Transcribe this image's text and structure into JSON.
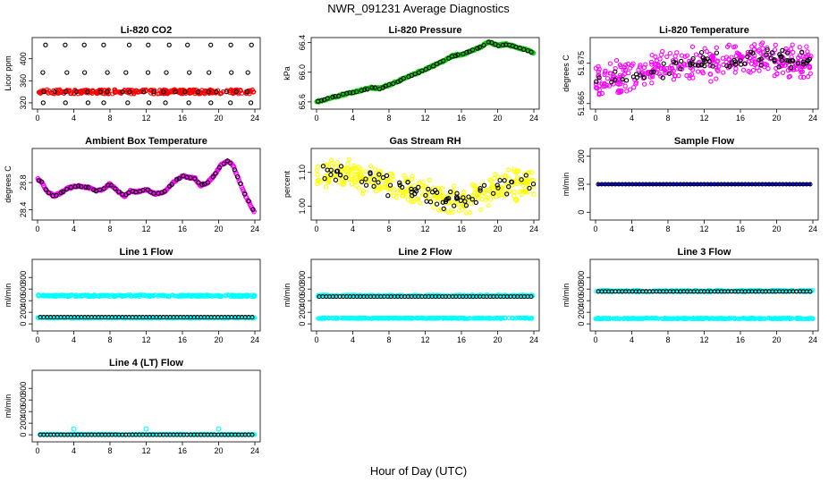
{
  "title": "NWR_091231  Average Diagnostics",
  "xlabel": "Hour of Day (UTC)",
  "x_ticks": [
    "0",
    "4",
    "8",
    "12",
    "16",
    "20",
    "24"
  ],
  "colors": {
    "black": "#000000",
    "red": "#ff0000",
    "green": "#00cc00",
    "magenta": "#ff00ff",
    "yellow": "#ffff00",
    "blue": "#0000ff",
    "cyan": "#00ffff"
  },
  "chart_data": [
    {
      "type": "scatter",
      "title": "Li-820 CO2",
      "ylabel": "Licor ppm",
      "xlim": [
        0,
        24
      ],
      "ylim": [
        315,
        432
      ],
      "y_ticks": [
        "320",
        "360",
        "400"
      ],
      "y_tick_values": [
        320,
        360,
        400
      ],
      "series": [
        {
          "color": "red",
          "style": "band",
          "values_range": [
            336,
            344
          ]
        },
        {
          "color": "black",
          "style": "levels",
          "levels": [
            320,
            340,
            375,
            425
          ]
        }
      ]
    },
    {
      "type": "scatter",
      "title": "Li-820 Pressure",
      "ylabel": "kPa",
      "xlim": [
        0,
        24
      ],
      "ylim": [
        65.55,
        66.42
      ],
      "y_ticks": [
        "65.6",
        "66.0",
        "66.4"
      ],
      "y_tick_values": [
        65.6,
        66.0,
        66.4
      ],
      "series": [
        {
          "color": "green",
          "style": "trend",
          "x": [
            0,
            2,
            4,
            6,
            7,
            8,
            10,
            12,
            14,
            15,
            16,
            18,
            19,
            20,
            21,
            22,
            23,
            24
          ],
          "y": [
            65.6,
            65.67,
            65.73,
            65.79,
            65.78,
            65.83,
            65.93,
            66.04,
            66.15,
            66.22,
            66.24,
            66.33,
            66.41,
            66.36,
            66.38,
            66.34,
            66.31,
            66.26
          ]
        },
        {
          "color": "black",
          "style": "trend-sparse",
          "x": [
            0,
            2,
            4,
            6,
            7,
            8,
            10,
            12,
            14,
            15,
            16,
            18,
            19,
            20,
            21,
            22,
            23,
            24
          ],
          "y": [
            65.6,
            65.67,
            65.73,
            65.79,
            65.78,
            65.83,
            65.93,
            66.04,
            66.15,
            66.22,
            66.24,
            66.33,
            66.41,
            66.36,
            66.38,
            66.34,
            66.31,
            66.26
          ]
        }
      ]
    },
    {
      "type": "scatter",
      "title": "Li-820 Temperature",
      "ylabel": "degrees C",
      "xlim": [
        0,
        24
      ],
      "ylim": [
        51.6645,
        51.6805
      ],
      "y_ticks": [
        "51.665",
        "51.675"
      ],
      "y_tick_values": [
        51.665,
        51.675
      ],
      "series": [
        {
          "color": "magenta",
          "style": "noise",
          "x": [
            0,
            4,
            8,
            12,
            16,
            20,
            24
          ],
          "y": [
            51.67,
            51.672,
            51.674,
            51.675,
            51.676,
            51.676,
            51.675
          ],
          "spread": 0.005
        },
        {
          "color": "black",
          "style": "noise-sparse",
          "x": [
            0,
            4,
            8,
            12,
            16,
            20,
            24
          ],
          "y": [
            51.67,
            51.672,
            51.674,
            51.675,
            51.676,
            51.676,
            51.675
          ],
          "spread": 0.003
        }
      ]
    },
    {
      "type": "scatter",
      "title": "Ambient Box Temperature",
      "ylabel": "degrees C",
      "xlim": [
        0,
        24
      ],
      "ylim": [
        28.3,
        29.25
      ],
      "y_ticks": [
        "28.4",
        "28.8"
      ],
      "y_tick_values": [
        28.4,
        28.8
      ],
      "series": [
        {
          "color": "magenta",
          "style": "trend",
          "x": [
            0,
            0.5,
            1,
            1.8,
            2.6,
            3.4,
            4.5,
            5.5,
            6.5,
            7.2,
            8,
            8.8,
            9.6,
            10.3,
            11,
            12,
            13,
            14,
            15,
            16,
            16.6,
            17.4,
            18,
            18.8,
            19.6,
            20.2,
            21,
            21.6,
            22.2,
            23,
            23.6,
            24
          ],
          "y": [
            28.85,
            28.8,
            28.68,
            28.6,
            28.65,
            28.72,
            28.75,
            28.73,
            28.68,
            28.7,
            28.78,
            28.68,
            28.6,
            28.68,
            28.66,
            28.7,
            28.63,
            28.66,
            28.8,
            28.9,
            28.88,
            28.86,
            28.76,
            28.8,
            28.92,
            29.05,
            29.12,
            29.05,
            28.85,
            28.6,
            28.45,
            28.35
          ]
        },
        {
          "color": "black",
          "style": "trend-sparse",
          "x": [
            0,
            0.5,
            1,
            1.8,
            2.6,
            3.4,
            4.5,
            5.5,
            6.5,
            7.2,
            8,
            8.8,
            9.6,
            10.3,
            11,
            12,
            13,
            14,
            15,
            16,
            16.6,
            17.4,
            18,
            18.8,
            19.6,
            20.2,
            21,
            21.6,
            22.2,
            23,
            23.6,
            24
          ],
          "y": [
            28.85,
            28.8,
            28.68,
            28.6,
            28.65,
            28.72,
            28.75,
            28.73,
            28.68,
            28.7,
            28.78,
            28.68,
            28.6,
            28.68,
            28.66,
            28.7,
            28.63,
            28.66,
            28.8,
            28.9,
            28.88,
            28.86,
            28.76,
            28.8,
            28.92,
            29.05,
            29.12,
            29.05,
            28.85,
            28.6,
            28.45,
            28.35
          ]
        }
      ]
    },
    {
      "type": "scatter",
      "title": "Gas Stream RH",
      "ylabel": "percent",
      "xlim": [
        0,
        24
      ],
      "ylim": [
        0.97,
        1.16
      ],
      "y_ticks": [
        "1.00",
        "1.10"
      ],
      "y_tick_values": [
        1.0,
        1.1
      ],
      "series": [
        {
          "color": "yellow",
          "style": "noise",
          "x": [
            0,
            3,
            6,
            9,
            12,
            15,
            17,
            19,
            21,
            24
          ],
          "y": [
            1.09,
            1.1,
            1.08,
            1.06,
            1.04,
            1.02,
            1.02,
            1.05,
            1.06,
            1.07
          ],
          "spread": 0.05
        },
        {
          "color": "black",
          "style": "noise-sparse",
          "x": [
            0,
            3,
            6,
            9,
            12,
            15,
            17,
            19,
            21,
            24
          ],
          "y": [
            1.09,
            1.1,
            1.08,
            1.06,
            1.04,
            1.02,
            1.02,
            1.05,
            1.06,
            1.07
          ],
          "spread": 0.04
        }
      ]
    },
    {
      "type": "scatter",
      "title": "Sample Flow",
      "ylabel": "ml/min",
      "xlim": [
        0,
        24
      ],
      "ylim": [
        -15,
        215
      ],
      "y_ticks": [
        "0",
        "100",
        "200"
      ],
      "y_tick_values": [
        0,
        100,
        200
      ],
      "series": [
        {
          "color": "blue",
          "style": "line",
          "y": 100
        },
        {
          "color": "black",
          "style": "flat-sparse",
          "y": 100
        }
      ]
    },
    {
      "type": "scatter",
      "title": "Line 1 Flow",
      "ylabel": "ml/min",
      "xlim": [
        0,
        24
      ],
      "ylim": [
        -60,
        1050
      ],
      "y_ticks": [
        "0",
        "200",
        "400",
        "600",
        "800"
      ],
      "y_tick_values": [
        0,
        200,
        400,
        600,
        800
      ],
      "series": [
        {
          "color": "cyan",
          "style": "band",
          "values_range": [
            470,
            500
          ]
        },
        {
          "color": "cyan",
          "style": "band",
          "values_range": [
            95,
            110
          ]
        },
        {
          "color": "black",
          "style": "flat-sparse",
          "y": 115
        }
      ]
    },
    {
      "type": "scatter",
      "title": "Line 2 Flow",
      "ylabel": "ml/min",
      "xlim": [
        0,
        24
      ],
      "ylim": [
        -60,
        1050
      ],
      "y_ticks": [
        "0",
        "200",
        "400",
        "600",
        "800"
      ],
      "y_tick_values": [
        0,
        200,
        400,
        600,
        800
      ],
      "series": [
        {
          "color": "cyan",
          "style": "band",
          "values_range": [
            470,
            500
          ]
        },
        {
          "color": "cyan",
          "style": "band",
          "values_range": [
            90,
            105
          ]
        },
        {
          "color": "black",
          "style": "flat-sparse",
          "y": 470
        }
      ]
    },
    {
      "type": "scatter",
      "title": "Line 3 Flow",
      "ylabel": "ml/min",
      "xlim": [
        0,
        24
      ],
      "ylim": [
        -60,
        1050
      ],
      "y_ticks": [
        "0",
        "200",
        "400",
        "600",
        "800"
      ],
      "y_tick_values": [
        0,
        200,
        400,
        600,
        800
      ],
      "series": [
        {
          "color": "cyan",
          "style": "band",
          "values_range": [
            550,
            580
          ]
        },
        {
          "color": "cyan",
          "style": "band",
          "values_range": [
            85,
            100
          ]
        },
        {
          "color": "black",
          "style": "flat-sparse",
          "y": 560
        }
      ]
    },
    {
      "type": "scatter",
      "title": "Line 4 (LT) Flow",
      "ylabel": "ml/min",
      "xlim": [
        0,
        24
      ],
      "ylim": [
        -60,
        1050
      ],
      "y_ticks": [
        "0",
        "200",
        "400",
        "600",
        "800"
      ],
      "y_tick_values": [
        0,
        200,
        400,
        600,
        800
      ],
      "series": [
        {
          "color": "cyan",
          "style": "band",
          "values_range": [
            0,
            10
          ]
        },
        {
          "color": "black",
          "style": "flat-sparse",
          "y": 0
        },
        {
          "color": "cyan",
          "style": "spikes",
          "x": [
            4,
            12,
            20
          ],
          "y": [
            100,
            100,
            100
          ]
        }
      ]
    }
  ]
}
